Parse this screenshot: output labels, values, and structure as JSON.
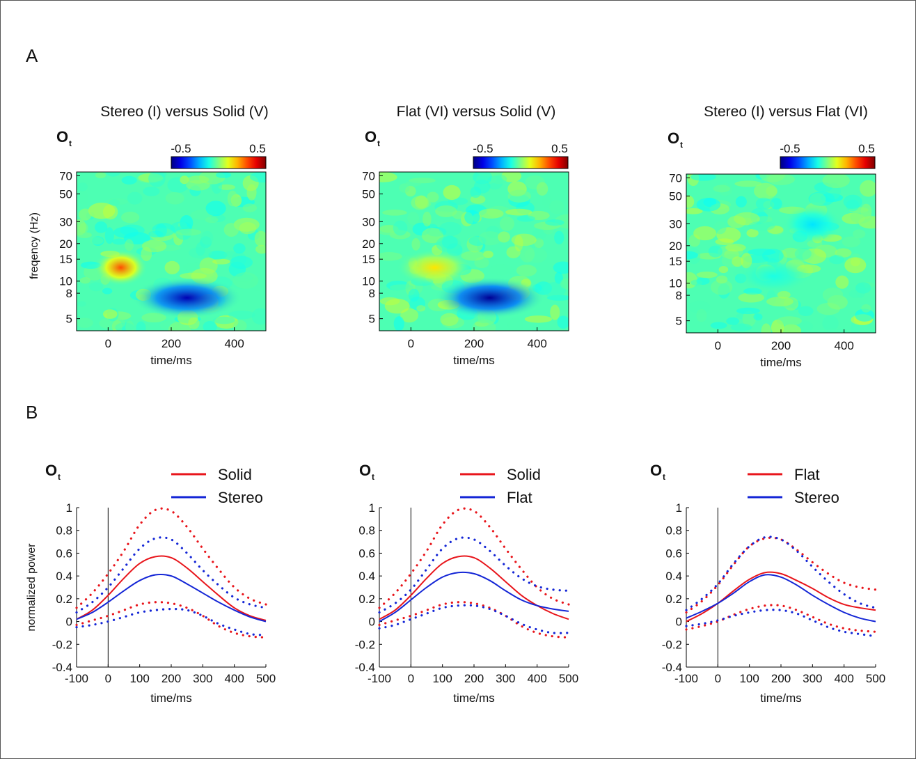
{
  "panel_labels": [
    "A",
    "B"
  ],
  "subscript_label": {
    "main": "O",
    "sub": "t"
  },
  "heatmaps": {
    "colorbar": {
      "min_label": "-0.5",
      "max_label": "0.5",
      "range": [
        -0.5,
        0.5
      ],
      "colormap": "jet"
    },
    "ylabel": "freqency (Hz)",
    "xlabel": "time/ms",
    "xticks": [
      "0",
      "200",
      "400"
    ],
    "yticks": [
      "70",
      "50",
      "30",
      "20",
      "15",
      "10",
      "8",
      "5"
    ],
    "panels": [
      {
        "title": "Stereo (I) versus Solid (V)"
      },
      {
        "title": "Flat (VI) versus Solid (V)"
      },
      {
        "title": "Stereo (I) versus Flat (VI)"
      }
    ]
  },
  "chart_data": [
    {
      "type": "heatmap",
      "title": "Stereo (I) versus Solid (V)",
      "xlabel": "time/ms",
      "ylabel": "freqency (Hz)",
      "xlim": [
        -100,
        500
      ],
      "ylim": [
        4,
        75
      ],
      "yscale": "log",
      "color_range": [
        -0.5,
        0.5
      ],
      "features": [
        {
          "desc": "desynchronization",
          "time": [
            120,
            380
          ],
          "freq": [
            6,
            9
          ],
          "value": -0.45
        },
        {
          "desc": "positive blob",
          "time": [
            0,
            80
          ],
          "freq": [
            11,
            15
          ],
          "value": 0.3
        }
      ]
    },
    {
      "type": "heatmap",
      "title": "Flat (VI) versus Solid (V)",
      "xlabel": "time/ms",
      "ylabel": "",
      "xlim": [
        -100,
        500
      ],
      "ylim": [
        4,
        75
      ],
      "yscale": "log",
      "color_range": [
        -0.5,
        0.5
      ],
      "features": [
        {
          "desc": "desynchronization",
          "time": [
            120,
            380
          ],
          "freq": [
            6,
            9
          ],
          "value": -0.48
        },
        {
          "desc": "positive band",
          "time": [
            0,
            150
          ],
          "freq": [
            11,
            15
          ],
          "value": 0.15
        }
      ]
    },
    {
      "type": "heatmap",
      "title": "Stereo (I) versus Flat (VI)",
      "xlabel": "time/ms",
      "ylabel": "",
      "xlim": [
        -100,
        500
      ],
      "ylim": [
        4,
        75
      ],
      "yscale": "log",
      "color_range": [
        -0.5,
        0.5
      ],
      "features": [
        {
          "desc": "weak negative",
          "time": [
            250,
            350
          ],
          "freq": [
            25,
            35
          ],
          "value": -0.15
        },
        {
          "desc": "weak negative",
          "time": [
            100,
            250
          ],
          "freq": [
            10,
            13
          ],
          "value": -0.1
        }
      ]
    },
    {
      "type": "line",
      "xlabel": "time/ms",
      "ylabel": "normalized power",
      "xlim": [
        -100,
        500
      ],
      "ylim": [
        -0.4,
        1
      ],
      "xticks": [
        "-100",
        "0",
        "100",
        "200",
        "300",
        "400",
        "500"
      ],
      "yticks": [
        "1",
        "0.8",
        "0.6",
        "0.4",
        "0.2",
        "0",
        "-0.2",
        "-0.4"
      ],
      "legend": "top-right",
      "x": [
        -100,
        -50,
        0,
        50,
        100,
        150,
        200,
        250,
        300,
        350,
        400,
        450,
        500
      ],
      "series": [
        {
          "name": "Solid",
          "color": "#e8151b",
          "style": "solid",
          "values": [
            0.02,
            0.1,
            0.23,
            0.38,
            0.51,
            0.57,
            0.56,
            0.47,
            0.35,
            0.23,
            0.12,
            0.05,
            0.01
          ]
        },
        {
          "name": "Stereo",
          "color": "#1426d6",
          "style": "solid",
          "values": [
            0.02,
            0.08,
            0.17,
            0.27,
            0.36,
            0.41,
            0.4,
            0.33,
            0.25,
            0.17,
            0.1,
            0.04,
            0.0
          ]
        },
        {
          "color": "#e8151b",
          "style": "dotted",
          "values": [
            0.12,
            0.25,
            0.42,
            0.62,
            0.85,
            0.98,
            0.97,
            0.83,
            0.64,
            0.46,
            0.3,
            0.2,
            0.15
          ]
        },
        {
          "color": "#e8151b",
          "style": "dotted",
          "values": [
            -0.03,
            0.01,
            0.05,
            0.1,
            0.15,
            0.17,
            0.16,
            0.12,
            0.05,
            -0.04,
            -0.1,
            -0.13,
            -0.14
          ]
        },
        {
          "color": "#1426d6",
          "style": "dotted",
          "values": [
            0.08,
            0.17,
            0.3,
            0.47,
            0.64,
            0.73,
            0.72,
            0.6,
            0.45,
            0.32,
            0.21,
            0.15,
            0.12
          ]
        },
        {
          "color": "#1426d6",
          "style": "dotted",
          "values": [
            -0.05,
            -0.03,
            0.0,
            0.04,
            0.08,
            0.1,
            0.11,
            0.1,
            0.05,
            -0.02,
            -0.07,
            -0.11,
            -0.12
          ]
        }
      ]
    },
    {
      "type": "line",
      "xlabel": "time/ms",
      "ylabel": "",
      "xlim": [
        -100,
        500
      ],
      "ylim": [
        -0.4,
        1
      ],
      "xticks": [
        "-100",
        "0",
        "100",
        "200",
        "300",
        "400",
        "500"
      ],
      "yticks": [
        "1",
        "0.8",
        "0.6",
        "0.4",
        "0.2",
        "0",
        "-0.2",
        "-0.4"
      ],
      "legend": "top-right",
      "x": [
        -100,
        -50,
        0,
        50,
        100,
        150,
        200,
        250,
        300,
        350,
        400,
        450,
        500
      ],
      "series": [
        {
          "name": "Solid",
          "color": "#e8151b",
          "style": "solid",
          "values": [
            0.02,
            0.1,
            0.23,
            0.38,
            0.51,
            0.57,
            0.56,
            0.47,
            0.35,
            0.23,
            0.14,
            0.07,
            0.02
          ]
        },
        {
          "name": "Flat",
          "color": "#1426d6",
          "style": "solid",
          "values": [
            0.0,
            0.08,
            0.19,
            0.3,
            0.39,
            0.43,
            0.42,
            0.36,
            0.27,
            0.19,
            0.14,
            0.11,
            0.09
          ]
        },
        {
          "color": "#e8151b",
          "style": "dotted",
          "values": [
            0.12,
            0.25,
            0.42,
            0.62,
            0.85,
            0.98,
            0.97,
            0.83,
            0.64,
            0.46,
            0.3,
            0.2,
            0.15
          ]
        },
        {
          "color": "#e8151b",
          "style": "dotted",
          "values": [
            -0.03,
            0.01,
            0.05,
            0.1,
            0.15,
            0.17,
            0.16,
            0.12,
            0.05,
            -0.04,
            -0.1,
            -0.13,
            -0.14
          ]
        },
        {
          "color": "#1426d6",
          "style": "dotted",
          "values": [
            0.08,
            0.16,
            0.28,
            0.46,
            0.64,
            0.73,
            0.72,
            0.62,
            0.49,
            0.38,
            0.31,
            0.28,
            0.27
          ]
        },
        {
          "color": "#1426d6",
          "style": "dotted",
          "values": [
            -0.06,
            -0.03,
            0.02,
            0.07,
            0.12,
            0.14,
            0.14,
            0.11,
            0.05,
            -0.02,
            -0.07,
            -0.1,
            -0.1
          ]
        }
      ]
    },
    {
      "type": "line",
      "xlabel": "time/ms",
      "ylabel": "",
      "xlim": [
        -100,
        500
      ],
      "ylim": [
        -0.4,
        1
      ],
      "xticks": [
        "-100",
        "0",
        "100",
        "200",
        "300",
        "400",
        "500"
      ],
      "yticks": [
        "1",
        "0.8",
        "0.6",
        "0.4",
        "0.2",
        "0",
        "-0.2",
        "-0.4"
      ],
      "legend": "top-right",
      "x": [
        -100,
        -50,
        0,
        50,
        100,
        150,
        200,
        250,
        300,
        350,
        400,
        450,
        500
      ],
      "series": [
        {
          "name": "Flat",
          "color": "#e8151b",
          "style": "solid",
          "values": [
            0.0,
            0.07,
            0.16,
            0.27,
            0.37,
            0.43,
            0.42,
            0.36,
            0.29,
            0.21,
            0.15,
            0.12,
            0.1
          ]
        },
        {
          "name": "Stereo",
          "color": "#1426d6",
          "style": "solid",
          "values": [
            0.03,
            0.09,
            0.16,
            0.25,
            0.35,
            0.41,
            0.39,
            0.32,
            0.23,
            0.15,
            0.08,
            0.03,
            0.0
          ]
        },
        {
          "color": "#e8151b",
          "style": "dotted",
          "values": [
            0.08,
            0.18,
            0.32,
            0.5,
            0.66,
            0.73,
            0.72,
            0.63,
            0.52,
            0.42,
            0.34,
            0.3,
            0.28
          ]
        },
        {
          "color": "#e8151b",
          "style": "dotted",
          "values": [
            -0.07,
            -0.04,
            0.0,
            0.06,
            0.11,
            0.14,
            0.14,
            0.1,
            0.04,
            -0.02,
            -0.06,
            -0.08,
            -0.09
          ]
        },
        {
          "color": "#1426d6",
          "style": "dotted",
          "values": [
            0.1,
            0.2,
            0.33,
            0.51,
            0.66,
            0.74,
            0.72,
            0.62,
            0.48,
            0.35,
            0.24,
            0.16,
            0.12
          ]
        },
        {
          "color": "#1426d6",
          "style": "dotted",
          "values": [
            -0.04,
            -0.02,
            0.01,
            0.05,
            0.08,
            0.1,
            0.1,
            0.07,
            0.01,
            -0.05,
            -0.09,
            -0.11,
            -0.13
          ]
        }
      ]
    }
  ]
}
